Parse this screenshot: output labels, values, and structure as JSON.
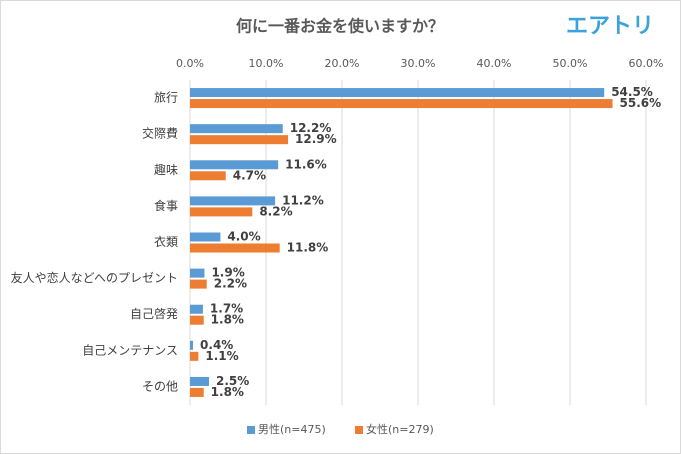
{
  "chart_data": {
    "type": "barh",
    "title": "何に一番お金を使いますか？",
    "logo": "エアトリ",
    "categories": [
      "旅行",
      "交際費",
      "趣味",
      "食事",
      "衣類",
      "友人や恋人などへのプレゼント",
      "自己啓発",
      "自己メンテナンス",
      "その他"
    ],
    "series": [
      {
        "name": "男性(n=475)",
        "color": "#5b9bd5",
        "values": [
          54.5,
          12.2,
          11.6,
          11.2,
          4.0,
          1.9,
          1.7,
          0.4,
          2.5
        ],
        "value_labels": [
          "54.5%",
          "12.2%",
          "11.6%",
          "11.2%",
          "4.0%",
          "1.9%",
          "1.7%",
          "0.4%",
          "2.5%"
        ]
      },
      {
        "name": "女性(n=279)",
        "color": "#ed7d31",
        "values": [
          55.6,
          12.9,
          4.7,
          8.2,
          11.8,
          2.2,
          1.8,
          1.1,
          1.8
        ],
        "value_labels": [
          "55.6%",
          "12.9%",
          "4.7%",
          "8.2%",
          "11.8%",
          "2.2%",
          "1.8%",
          "1.1%",
          "1.8%"
        ]
      }
    ],
    "xlim": [
      0,
      60
    ],
    "xticks": [
      {
        "value": 0,
        "label": "0.0%"
      },
      {
        "value": 10,
        "label": "10.0%"
      },
      {
        "value": 20,
        "label": "20.0%"
      },
      {
        "value": 30,
        "label": "30.0%"
      },
      {
        "value": 40,
        "label": "40.0%"
      },
      {
        "value": 50,
        "label": "50.0%"
      },
      {
        "value": 60,
        "label": "60.0%"
      }
    ],
    "grid": true,
    "legend": "bottom"
  }
}
